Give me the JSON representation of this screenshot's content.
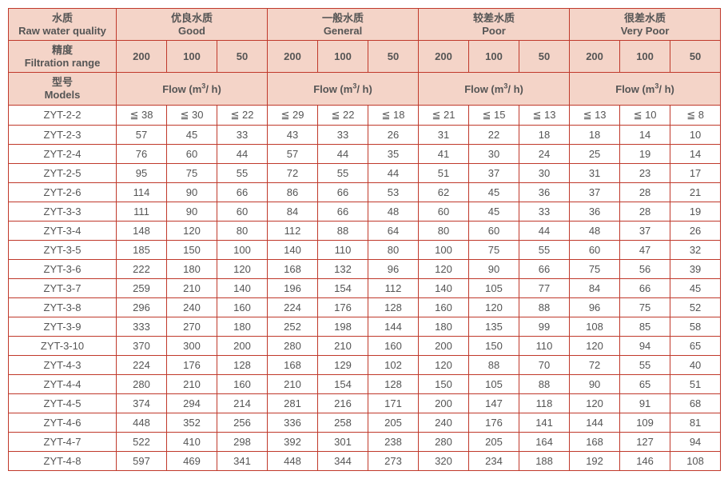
{
  "colors": {
    "border": "#c0392b",
    "header_bg": "#f4d4c8",
    "text": "#555555",
    "bg": "#ffffff"
  },
  "fonts": {
    "base_size": 13
  },
  "header": {
    "water_quality": {
      "cn": "水质",
      "en": "Raw water quality"
    },
    "precision": {
      "cn": "精度",
      "en": "Filtration range"
    },
    "models": {
      "cn": "型号",
      "en": "Models"
    },
    "groups": [
      {
        "cn": "优良水质",
        "en": "Good"
      },
      {
        "cn": "一般水质",
        "en": "General"
      },
      {
        "cn": "较差水质",
        "en": "Poor"
      },
      {
        "cn": "很差水质",
        "en": "Very Poor"
      }
    ],
    "precisions": [
      "200",
      "100",
      "50"
    ],
    "flow_label": "Flow (m³/ h)"
  },
  "rows": [
    {
      "model": "ZYT-2-2",
      "v": [
        "≦ 38",
        "≦ 30",
        "≦ 22",
        "≦ 29",
        "≦ 22",
        "≦ 18",
        "≦ 21",
        "≦ 15",
        "≦ 13",
        "≦ 13",
        "≦ 10",
        "≦ 8"
      ]
    },
    {
      "model": "ZYT-2-3",
      "v": [
        "57",
        "45",
        "33",
        "43",
        "33",
        "26",
        "31",
        "22",
        "18",
        "18",
        "14",
        "10"
      ]
    },
    {
      "model": "ZYT-2-4",
      "v": [
        "76",
        "60",
        "44",
        "57",
        "44",
        "35",
        "41",
        "30",
        "24",
        "25",
        "19",
        "14"
      ]
    },
    {
      "model": "ZYT-2-5",
      "v": [
        "95",
        "75",
        "55",
        "72",
        "55",
        "44",
        "51",
        "37",
        "30",
        "31",
        "23",
        "17"
      ]
    },
    {
      "model": "ZYT-2-6",
      "v": [
        "114",
        "90",
        "66",
        "86",
        "66",
        "53",
        "62",
        "45",
        "36",
        "37",
        "28",
        "21"
      ]
    },
    {
      "model": "ZYT-3-3",
      "v": [
        "111",
        "90",
        "60",
        "84",
        "66",
        "48",
        "60",
        "45",
        "33",
        "36",
        "28",
        "19"
      ]
    },
    {
      "model": "ZYT-3-4",
      "v": [
        "148",
        "120",
        "80",
        "112",
        "88",
        "64",
        "80",
        "60",
        "44",
        "48",
        "37",
        "26"
      ]
    },
    {
      "model": "ZYT-3-5",
      "v": [
        "185",
        "150",
        "100",
        "140",
        "110",
        "80",
        "100",
        "75",
        "55",
        "60",
        "47",
        "32"
      ]
    },
    {
      "model": "ZYT-3-6",
      "v": [
        "222",
        "180",
        "120",
        "168",
        "132",
        "96",
        "120",
        "90",
        "66",
        "75",
        "56",
        "39"
      ]
    },
    {
      "model": "ZYT-3-7",
      "v": [
        "259",
        "210",
        "140",
        "196",
        "154",
        "112",
        "140",
        "105",
        "77",
        "84",
        "66",
        "45"
      ]
    },
    {
      "model": "ZYT-3-8",
      "v": [
        "296",
        "240",
        "160",
        "224",
        "176",
        "128",
        "160",
        "120",
        "88",
        "96",
        "75",
        "52"
      ]
    },
    {
      "model": "ZYT-3-9",
      "v": [
        "333",
        "270",
        "180",
        "252",
        "198",
        "144",
        "180",
        "135",
        "99",
        "108",
        "85",
        "58"
      ]
    },
    {
      "model": "ZYT-3-10",
      "v": [
        "370",
        "300",
        "200",
        "280",
        "210",
        "160",
        "200",
        "150",
        "110",
        "120",
        "94",
        "65"
      ]
    },
    {
      "model": "ZYT-4-3",
      "v": [
        "224",
        "176",
        "128",
        "168",
        "129",
        "102",
        "120",
        "88",
        "70",
        "72",
        "55",
        "40"
      ]
    },
    {
      "model": "ZYT-4-4",
      "v": [
        "280",
        "210",
        "160",
        "210",
        "154",
        "128",
        "150",
        "105",
        "88",
        "90",
        "65",
        "51"
      ]
    },
    {
      "model": "ZYT-4-5",
      "v": [
        "374",
        "294",
        "214",
        "281",
        "216",
        "171",
        "200",
        "147",
        "118",
        "120",
        "91",
        "68"
      ]
    },
    {
      "model": "ZYT-4-6",
      "v": [
        "448",
        "352",
        "256",
        "336",
        "258",
        "205",
        "240",
        "176",
        "141",
        "144",
        "109",
        "81"
      ]
    },
    {
      "model": "ZYT-4-7",
      "v": [
        "522",
        "410",
        "298",
        "392",
        "301",
        "238",
        "280",
        "205",
        "164",
        "168",
        "127",
        "94"
      ]
    },
    {
      "model": "ZYT-4-8",
      "v": [
        "597",
        "469",
        "341",
        "448",
        "344",
        "273",
        "320",
        "234",
        "188",
        "192",
        "146",
        "108"
      ]
    }
  ]
}
